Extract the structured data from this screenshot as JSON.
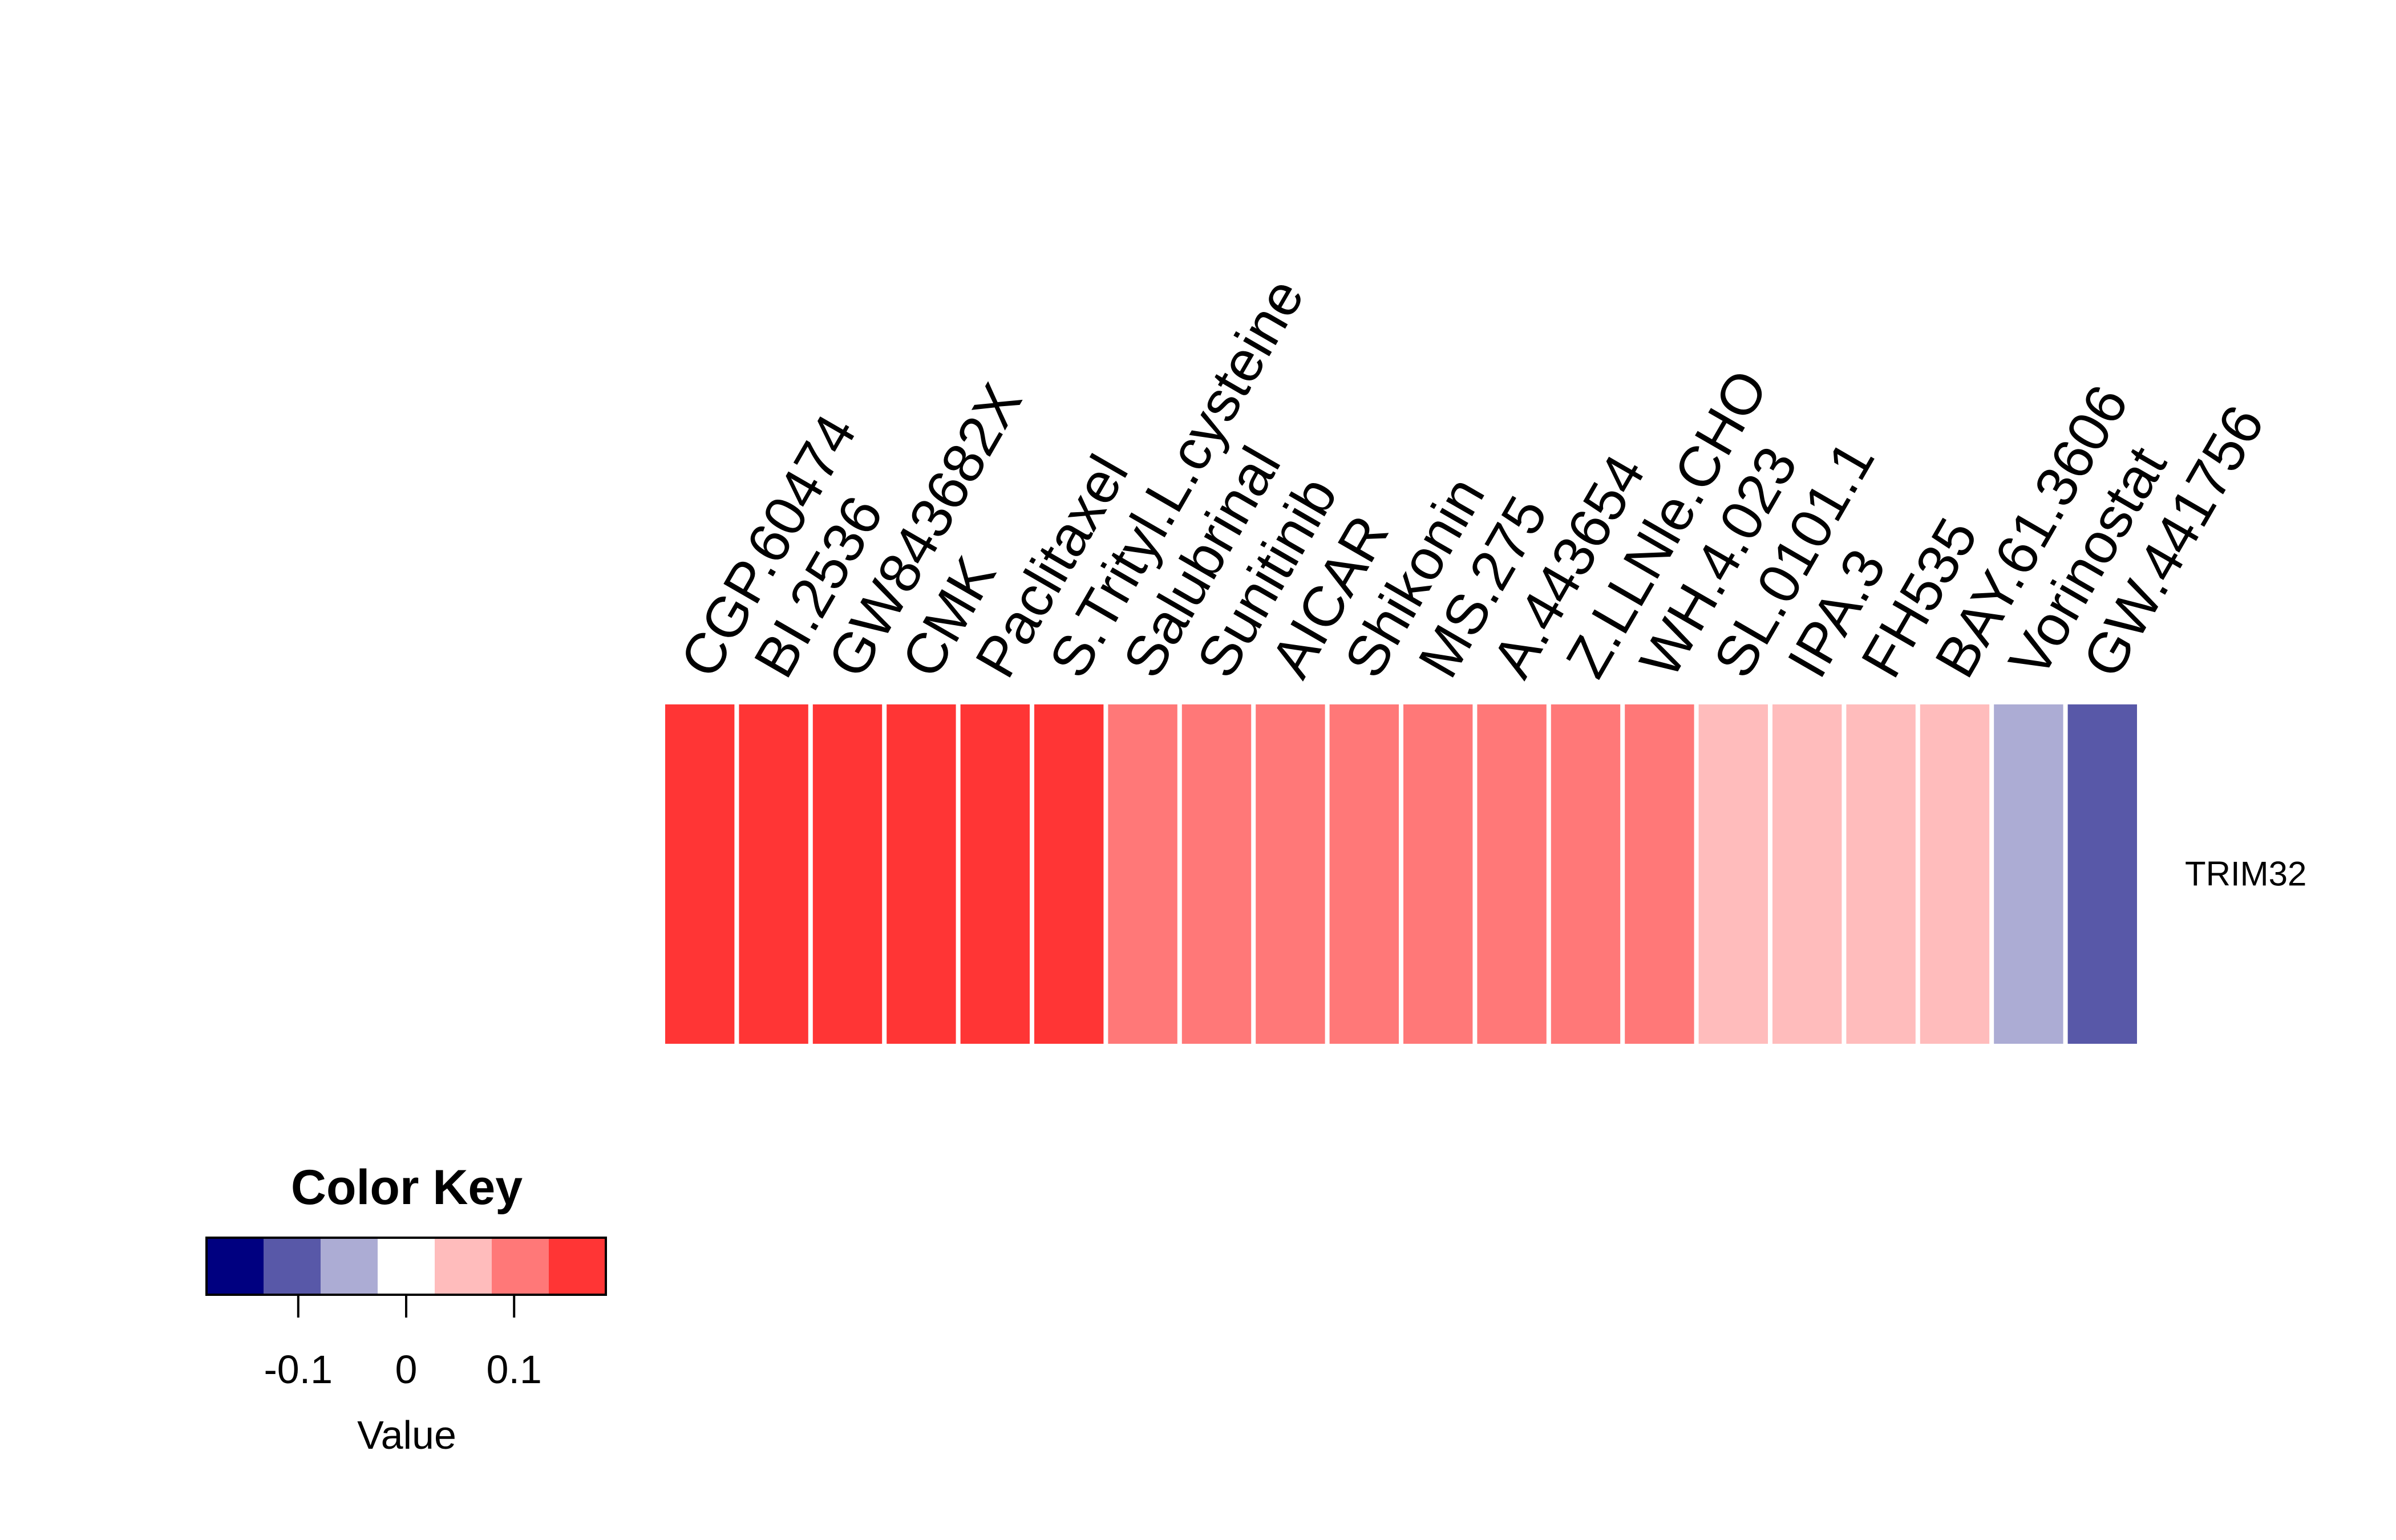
{
  "chart_data": {
    "type": "heatmap",
    "title": "",
    "rows": [
      "TRIM32"
    ],
    "columns": [
      "CGP.60474",
      "BI.2536",
      "GW843682X",
      "CMK",
      "Paclitaxel",
      "S.Trityl.L.cysteine",
      "Salubrinal",
      "Sunitinib",
      "AICAR",
      "Shikonin",
      "MS.275",
      "A.443654",
      "Z.LLNle.CHO",
      "WH.4.023",
      "SL.0101.1",
      "IPA.3",
      "FH535",
      "BAY.61.3606",
      "Vorinostat",
      "GW.441756"
    ],
    "values": [
      [
        0.17,
        0.17,
        0.17,
        0.17,
        0.17,
        0.17,
        0.12,
        0.12,
        0.12,
        0.12,
        0.12,
        0.12,
        0.12,
        0.12,
        0.07,
        0.07,
        0.07,
        0.07,
        -0.07,
        -0.12
      ]
    ],
    "color_scale": {
      "breaks": [
        -0.2,
        -0.15,
        -0.1,
        -0.05,
        0,
        0.05,
        0.1,
        0.15,
        0.2
      ],
      "colors": [
        "#000080",
        "#5858a8",
        "#acacd4",
        "#ffffff",
        "#ffbcbc",
        "#ff7878",
        "#ff3535"
      ]
    },
    "color_key": {
      "title": "Color Key",
      "xlabel": "Value",
      "ticks": [
        -0.1,
        0,
        0.1
      ],
      "tick_labels": [
        "-0.1",
        "0",
        "0.1"
      ]
    }
  }
}
